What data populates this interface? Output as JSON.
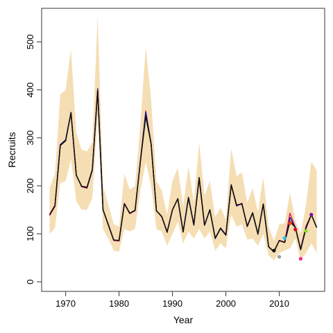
{
  "chart_data": {
    "type": "line",
    "title": "",
    "xlabel": "Year",
    "ylabel": "Recruits",
    "xlim": [
      1965.5,
      2018.5
    ],
    "ylim": [
      -20,
      570
    ],
    "xticks": [
      1970,
      1980,
      1990,
      2000,
      2010
    ],
    "yticks": [
      0,
      100,
      200,
      300,
      400,
      500
    ],
    "grid": false,
    "legend": "none",
    "x": [
      1967,
      1968,
      1969,
      1970,
      1971,
      1972,
      1973,
      1974,
      1975,
      1976,
      1977,
      1978,
      1979,
      1980,
      1981,
      1982,
      1983,
      1984,
      1985,
      1986,
      1987,
      1988,
      1989,
      1990,
      1991,
      1992,
      1993,
      1994,
      1995,
      1996,
      1997,
      1998,
      1999,
      2000,
      2001,
      2002,
      2003,
      2004,
      2005,
      2006,
      2007,
      2008,
      2009,
      2010,
      2011,
      2012,
      2013,
      2014,
      2015,
      2016,
      2017
    ],
    "band": {
      "color": "#f5deb3",
      "lower": [
        100,
        112,
        205,
        210,
        255,
        168,
        150,
        150,
        175,
        345,
        110,
        90,
        65,
        63,
        110,
        105,
        110,
        190,
        250,
        200,
        110,
        105,
        75,
        100,
        125,
        80,
        105,
        90,
        110,
        90,
        105,
        65,
        80,
        70,
        140,
        115,
        120,
        88,
        90,
        75,
        100,
        55,
        45,
        60,
        65,
        70,
        90,
        45,
        60,
        80,
        60
      ],
      "upper": [
        195,
        225,
        390,
        400,
        485,
        310,
        275,
        272,
        290,
        555,
        200,
        160,
        120,
        115,
        225,
        192,
        200,
        330,
        490,
        380,
        210,
        190,
        140,
        210,
        238,
        158,
        240,
        165,
        290,
        180,
        210,
        135,
        155,
        130,
        278,
        220,
        228,
        165,
        195,
        145,
        218,
        115,
        85,
        120,
        122,
        185,
        128,
        100,
        160,
        250,
        232
      ]
    },
    "series": [
      {
        "color": "#e0185c",
        "values": [
          138,
          157,
          286,
          295,
          352,
          222,
          198,
          195,
          232,
          403,
          150,
          118,
          86,
          85,
          163,
          142,
          148,
          252,
          356,
          288,
          148,
          135,
          103,
          150,
          173,
          104,
          176,
          118,
          215,
          118,
          150,
          90,
          111,
          97,
          202,
          158,
          164,
          115,
          143,
          99,
          162,
          73,
          63,
          86,
          83,
          143,
          113,
          69,
          116,
          140,
          113
        ]
      },
      {
        "color": "#1a1a9a",
        "values": [
          140,
          158,
          286,
          296,
          352,
          222,
          199,
          196,
          233,
          402,
          150,
          118,
          87,
          86,
          163,
          143,
          148,
          252,
          354,
          288,
          148,
          136,
          103,
          150,
          173,
          104,
          176,
          118,
          216,
          118,
          150,
          90,
          111,
          97,
          202,
          158,
          163,
          115,
          143,
          99,
          162,
          73,
          62,
          86,
          82,
          134,
          113,
          68,
          114,
          140,
          113
        ]
      },
      {
        "color": "#111111",
        "values": [
          140,
          159,
          284,
          294,
          353,
          222,
          199,
          197,
          234,
          398,
          150,
          119,
          87,
          86,
          163,
          143,
          149,
          252,
          345,
          288,
          148,
          136,
          104,
          150,
          173,
          104,
          175,
          119,
          217,
          118,
          150,
          91,
          112,
          98,
          202,
          160,
          162,
          116,
          144,
          100,
          162,
          73,
          63,
          86,
          82,
          126,
          113,
          67,
          112,
          140,
          113
        ]
      }
    ],
    "points": [
      {
        "x": 2009,
        "y": 65,
        "color": "#111111"
      },
      {
        "x": 2010,
        "y": 52,
        "color": "#999999"
      },
      {
        "x": 2011,
        "y": 91,
        "color": "#33bbee"
      },
      {
        "x": 2012,
        "y": 122,
        "color": "#ee4411"
      },
      {
        "x": 2013,
        "y": 109,
        "color": "#dd0022"
      },
      {
        "x": 2014,
        "y": 48,
        "color": "#ff2288"
      },
      {
        "x": 2015,
        "y": 106,
        "color": "#88dd22"
      },
      {
        "x": 2016,
        "y": 140,
        "color": "#7711aa"
      }
    ]
  }
}
